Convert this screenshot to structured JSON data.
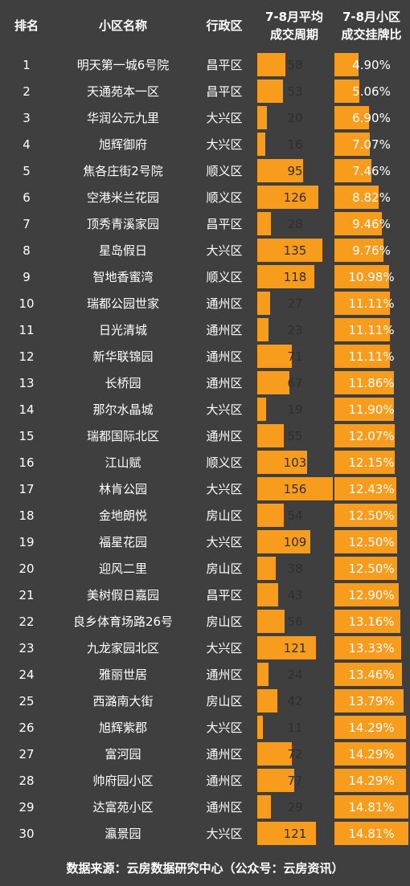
{
  "headers": {
    "rank": "排名",
    "name": "小区名称",
    "district": "行政区",
    "cycle_line1": "7-8月平均",
    "cycle_line2": "成交周期",
    "ratio_line1": "7-8月小区",
    "ratio_line2": "成交挂牌比"
  },
  "footer": "数据来源：云房数据研究中心（公众号：云房资讯）",
  "colors": {
    "background": "#3f3f3f",
    "bar": "#f79c1d",
    "text": "#ffffff"
  },
  "chart_data": {
    "type": "table",
    "rows": [
      {
        "rank": "1",
        "name": "明天第一城6号院",
        "district": "昌平区",
        "cycle": 58,
        "ratio": "4.90%"
      },
      {
        "rank": "2",
        "name": "天通苑本一区",
        "district": "昌平区",
        "cycle": 53,
        "ratio": "5.06%"
      },
      {
        "rank": "3",
        "name": "华润公元九里",
        "district": "大兴区",
        "cycle": 20,
        "ratio": "6.90%"
      },
      {
        "rank": "4",
        "name": "旭辉御府",
        "district": "大兴区",
        "cycle": 16,
        "ratio": "7.07%"
      },
      {
        "rank": "5",
        "name": "焦各庄街2号院",
        "district": "顺义区",
        "cycle": 95,
        "ratio": "7.46%"
      },
      {
        "rank": "6",
        "name": "空港米兰花园",
        "district": "顺义区",
        "cycle": 126,
        "ratio": "8.82%"
      },
      {
        "rank": "7",
        "name": "顶秀青溪家园",
        "district": "昌平区",
        "cycle": 28,
        "ratio": "9.46%"
      },
      {
        "rank": "8",
        "name": "星岛假日",
        "district": "大兴区",
        "cycle": 135,
        "ratio": "9.76%"
      },
      {
        "rank": "9",
        "name": "智地香蜜湾",
        "district": "顺义区",
        "cycle": 118,
        "ratio": "10.98%"
      },
      {
        "rank": "10",
        "name": "瑞都公园世家",
        "district": "通州区",
        "cycle": 27,
        "ratio": "11.11%"
      },
      {
        "rank": "11",
        "name": "日光清城",
        "district": "通州区",
        "cycle": 23,
        "ratio": "11.11%"
      },
      {
        "rank": "12",
        "name": "新华联锦园",
        "district": "通州区",
        "cycle": 71,
        "ratio": "11.11%"
      },
      {
        "rank": "13",
        "name": "长桥园",
        "district": "通州区",
        "cycle": 67,
        "ratio": "11.86%"
      },
      {
        "rank": "14",
        "name": "那尔水晶城",
        "district": "大兴区",
        "cycle": 19,
        "ratio": "11.90%"
      },
      {
        "rank": "15",
        "name": "瑞都国际北区",
        "district": "通州区",
        "cycle": 55,
        "ratio": "12.07%"
      },
      {
        "rank": "16",
        "name": "江山赋",
        "district": "顺义区",
        "cycle": 103,
        "ratio": "12.15%"
      },
      {
        "rank": "17",
        "name": "林肯公园",
        "district": "大兴区",
        "cycle": 156,
        "ratio": "12.43%"
      },
      {
        "rank": "18",
        "name": "金地朗悦",
        "district": "房山区",
        "cycle": 54,
        "ratio": "12.50%"
      },
      {
        "rank": "19",
        "name": "福星花园",
        "district": "大兴区",
        "cycle": 109,
        "ratio": "12.50%"
      },
      {
        "rank": "20",
        "name": "迎风二里",
        "district": "房山区",
        "cycle": 38,
        "ratio": "12.50%"
      },
      {
        "rank": "21",
        "name": "美树假日嘉园",
        "district": "昌平区",
        "cycle": 43,
        "ratio": "12.90%"
      },
      {
        "rank": "22",
        "name": "良乡体育场路26号",
        "district": "房山区",
        "cycle": 56,
        "ratio": "13.16%"
      },
      {
        "rank": "23",
        "name": "九龙家园北区",
        "district": "大兴区",
        "cycle": 121,
        "ratio": "13.33%"
      },
      {
        "rank": "24",
        "name": "雅丽世居",
        "district": "通州区",
        "cycle": 24,
        "ratio": "13.46%"
      },
      {
        "rank": "25",
        "name": "西潞南大街",
        "district": "房山区",
        "cycle": 42,
        "ratio": "13.79%"
      },
      {
        "rank": "26",
        "name": "旭辉紫郡",
        "district": "大兴区",
        "cycle": 11,
        "ratio": "14.29%"
      },
      {
        "rank": "27",
        "name": "富河园",
        "district": "通州区",
        "cycle": 72,
        "ratio": "14.29%"
      },
      {
        "rank": "28",
        "name": "帅府园小区",
        "district": "通州区",
        "cycle": 77,
        "ratio": "14.29%"
      },
      {
        "rank": "29",
        "name": "达富苑小区",
        "district": "通州区",
        "cycle": 29,
        "ratio": "14.81%"
      },
      {
        "rank": "30",
        "name": "瀛景园",
        "district": "大兴区",
        "cycle": 121,
        "ratio": "14.81%"
      }
    ]
  }
}
